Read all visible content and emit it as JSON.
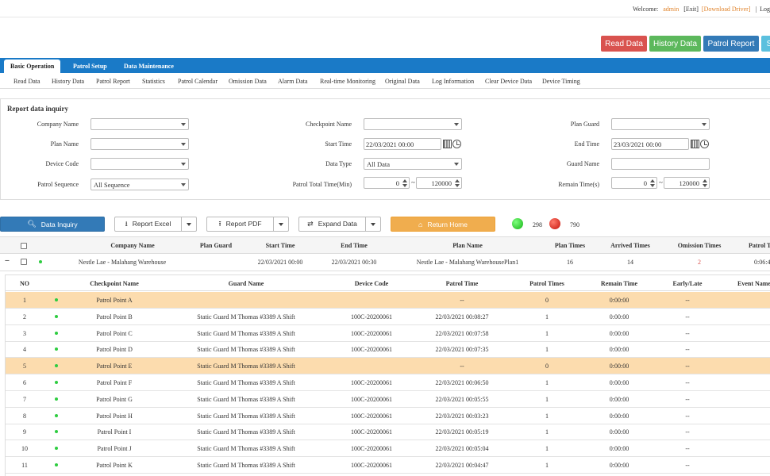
{
  "topbar": {
    "welcome": "Welcome:",
    "user": "admin",
    "exit": "[Exit]",
    "download": "[Download Driver]",
    "login": "Login V"
  },
  "top_buttons": {
    "read": "Read Data",
    "history": "History Data",
    "patrol": "Patrol Report",
    "cut": "S"
  },
  "menu": {
    "tabs": [
      "Basic Operation",
      "Patrol Setup",
      "Data Maintenance"
    ]
  },
  "submenu": [
    "Read Data",
    "History Data",
    "Patrol Report",
    "Statistics",
    "Patrol Calendar",
    "Omission Data",
    "Alarm Data",
    "Real-time Monitoring",
    "Original Data",
    "Log Information",
    "Clear Device Data",
    "Device Timing"
  ],
  "inquiry": {
    "title": "Report data inquiry",
    "company_label": "Company Name",
    "company_value": "",
    "checkpoint_label": "Checkpoint Name",
    "checkpoint_value": "",
    "guard_label": "Plan Guard",
    "guard_value": "",
    "plan_label": "Plan Name",
    "plan_value": "",
    "start_label": "Start Time",
    "start_value": "22/03/2021 00:00",
    "end_label": "End Time",
    "end_value": "23/03/2021 00:00",
    "device_label": "Device Code",
    "device_value": "",
    "datatype_label": "Data Type",
    "datatype_value": "All Data",
    "guardname_label": "Guard Name",
    "guardname_value": "",
    "sequence_label": "Patrol Sequence",
    "sequence_value": "All Sequence",
    "total_label": "Patrol Total Time(Min)",
    "total_min": "0",
    "total_max": "120000",
    "remain_label": "Remain Time(s)",
    "remain_min": "0",
    "remain_max": "120000",
    "tilde": "~"
  },
  "actions": {
    "inquiry": "Data Inquiry",
    "excel": "Report Excel",
    "pdf": "Report PDF",
    "expand": "Expand Data",
    "home": "Return Home",
    "green_count": "298",
    "red_count": "790"
  },
  "main_table": {
    "headers": [
      "Company Name",
      "Plan Guard",
      "Start Time",
      "End Time",
      "Plan Name",
      "Plan Times",
      "Arrived Times",
      "Omission Times",
      "Patrol Ti"
    ],
    "row": {
      "collapse": "−",
      "company": "Nestle Lae - Malahang Warehouse",
      "guard": "",
      "start": "22/03/2021 00:00",
      "end": "22/03/2021 00:30",
      "plan": "Nestle Lae - Malahang WarehousePlan1",
      "plan_times": "16",
      "arrived": "14",
      "omission": "2",
      "patrol_time": "0:06:4"
    }
  },
  "detail_table": {
    "headers": [
      "NO",
      "Checkpoint Name",
      "Guard Name",
      "Device Code",
      "Patrol Time",
      "Patrol Times",
      "Remain Time",
      "Early/Late",
      "Event Name"
    ],
    "rows": [
      {
        "no": "1",
        "cp": "Patrol Point A",
        "guard": "",
        "device": "",
        "time": "--",
        "times": "0",
        "remain": "0:00:00",
        "el": "--"
      },
      {
        "no": "2",
        "cp": "Patrol Point B",
        "guard": "Static Guard M Thomas #3389 A Shift",
        "device": "100C-20200061",
        "time": "22/03/2021 00:08:27",
        "times": "1",
        "remain": "0:00:00",
        "el": "--"
      },
      {
        "no": "3",
        "cp": "Patrol Point C",
        "guard": "Static Guard M Thomas #3389 A Shift",
        "device": "100C-20200061",
        "time": "22/03/2021 00:07:58",
        "times": "1",
        "remain": "0:00:00",
        "el": "--"
      },
      {
        "no": "4",
        "cp": "Patrol Point D",
        "guard": "Static Guard M Thomas #3389 A Shift",
        "device": "100C-20200061",
        "time": "22/03/2021 00:07:35",
        "times": "1",
        "remain": "0:00:00",
        "el": "--"
      },
      {
        "no": "5",
        "cp": "Patrol Point E",
        "guard": "Static Guard M Thomas #3389 A Shift",
        "device": "",
        "time": "--",
        "times": "0",
        "remain": "0:00:00",
        "el": "--"
      },
      {
        "no": "6",
        "cp": "Patrol Point F",
        "guard": "Static Guard M Thomas #3389 A Shift",
        "device": "100C-20200061",
        "time": "22/03/2021 00:06:50",
        "times": "1",
        "remain": "0:00:00",
        "el": "--"
      },
      {
        "no": "7",
        "cp": "Patrol Point G",
        "guard": "Static Guard M Thomas #3389 A Shift",
        "device": "100C-20200061",
        "time": "22/03/2021 00:05:55",
        "times": "1",
        "remain": "0:00:00",
        "el": "--"
      },
      {
        "no": "8",
        "cp": "Patrol Point H",
        "guard": "Static Guard M Thomas #3389 A Shift",
        "device": "100C-20200061",
        "time": "22/03/2021 00:03:23",
        "times": "1",
        "remain": "0:00:00",
        "el": "--"
      },
      {
        "no": "9",
        "cp": "Patrol Point I",
        "guard": "Static Guard M Thomas #3389 A Shift",
        "device": "100C-20200061",
        "time": "22/03/2021 00:05:19",
        "times": "1",
        "remain": "0:00:00",
        "el": "--"
      },
      {
        "no": "10",
        "cp": "Patrol Point J",
        "guard": "Static Guard M Thomas #3389 A Shift",
        "device": "100C-20200061",
        "time": "22/03/2021 00:05:04",
        "times": "1",
        "remain": "0:00:00",
        "el": "--"
      },
      {
        "no": "11",
        "cp": "Patrol Point K",
        "guard": "Static Guard M Thomas #3389 A Shift",
        "device": "100C-20200061",
        "time": "22/03/2021 00:04:47",
        "times": "1",
        "remain": "0:00:00",
        "el": "--"
      }
    ]
  },
  "colors": {
    "accent": "#1a7ac7",
    "missing_row": "#fcdcae",
    "omission": "#d9534f"
  }
}
